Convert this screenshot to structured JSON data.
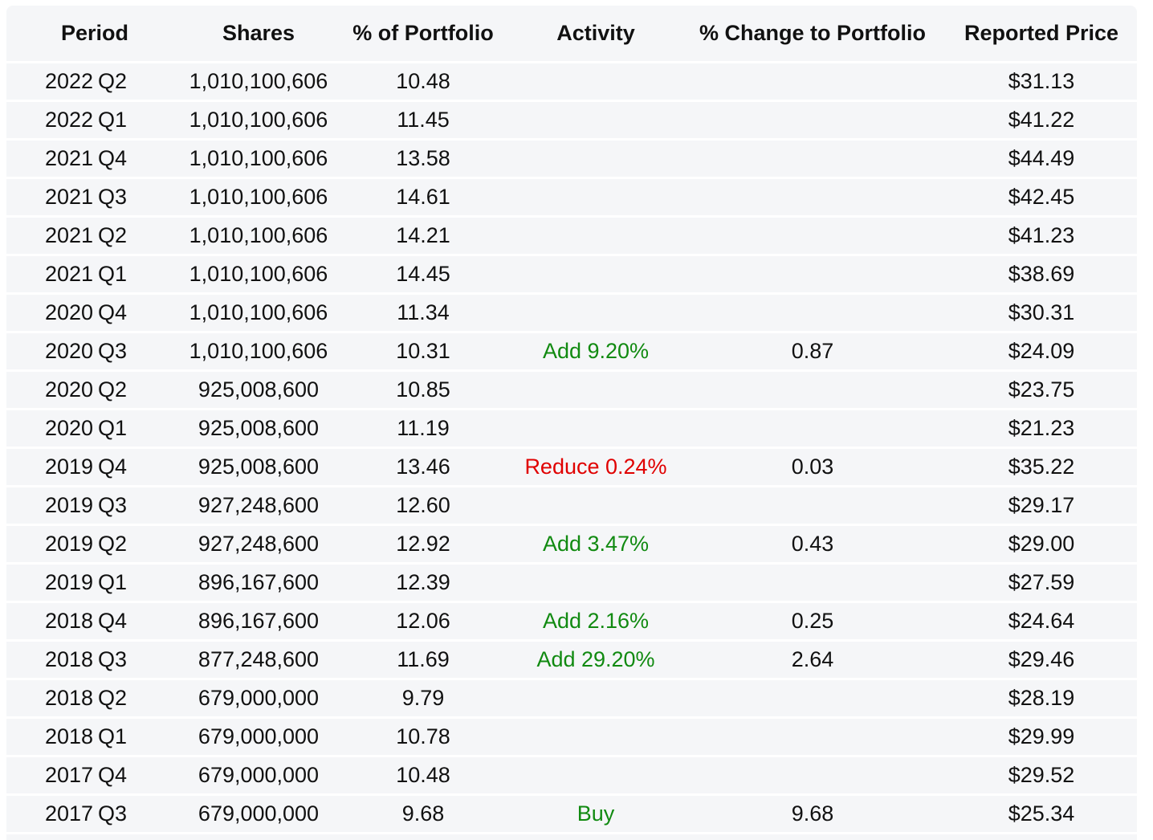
{
  "headers": {
    "period": "Period",
    "shares": "Shares",
    "pct_portfolio": "% of Portfolio",
    "activity": "Activity",
    "pct_change": "% Change to Portfolio",
    "price": "Reported Price"
  },
  "colors": {
    "add": "#118a11",
    "reduce": "#e00000",
    "background": "#f5f6f8"
  },
  "rows": [
    {
      "year": "2022",
      "quarter": "Q2",
      "shares": "1,010,100,606",
      "pct": "10.48",
      "activity": "",
      "activity_type": "",
      "change": "",
      "price": "$31.13"
    },
    {
      "year": "2022",
      "quarter": "Q1",
      "shares": "1,010,100,606",
      "pct": "11.45",
      "activity": "",
      "activity_type": "",
      "change": "",
      "price": "$41.22"
    },
    {
      "year": "2021",
      "quarter": "Q4",
      "shares": "1,010,100,606",
      "pct": "13.58",
      "activity": "",
      "activity_type": "",
      "change": "",
      "price": "$44.49"
    },
    {
      "year": "2021",
      "quarter": "Q3",
      "shares": "1,010,100,606",
      "pct": "14.61",
      "activity": "",
      "activity_type": "",
      "change": "",
      "price": "$42.45"
    },
    {
      "year": "2021",
      "quarter": "Q2",
      "shares": "1,010,100,606",
      "pct": "14.21",
      "activity": "",
      "activity_type": "",
      "change": "",
      "price": "$41.23"
    },
    {
      "year": "2021",
      "quarter": "Q1",
      "shares": "1,010,100,606",
      "pct": "14.45",
      "activity": "",
      "activity_type": "",
      "change": "",
      "price": "$38.69"
    },
    {
      "year": "2020",
      "quarter": "Q4",
      "shares": "1,010,100,606",
      "pct": "11.34",
      "activity": "",
      "activity_type": "",
      "change": "",
      "price": "$30.31"
    },
    {
      "year": "2020",
      "quarter": "Q3",
      "shares": "1,010,100,606",
      "pct": "10.31",
      "activity": "Add 9.20%",
      "activity_type": "add",
      "change": "0.87",
      "price": "$24.09"
    },
    {
      "year": "2020",
      "quarter": "Q2",
      "shares": "925,008,600",
      "pct": "10.85",
      "activity": "",
      "activity_type": "",
      "change": "",
      "price": "$23.75"
    },
    {
      "year": "2020",
      "quarter": "Q1",
      "shares": "925,008,600",
      "pct": "11.19",
      "activity": "",
      "activity_type": "",
      "change": "",
      "price": "$21.23"
    },
    {
      "year": "2019",
      "quarter": "Q4",
      "shares": "925,008,600",
      "pct": "13.46",
      "activity": "Reduce 0.24%",
      "activity_type": "reduce",
      "change": "0.03",
      "price": "$35.22"
    },
    {
      "year": "2019",
      "quarter": "Q3",
      "shares": "927,248,600",
      "pct": "12.60",
      "activity": "",
      "activity_type": "",
      "change": "",
      "price": "$29.17"
    },
    {
      "year": "2019",
      "quarter": "Q2",
      "shares": "927,248,600",
      "pct": "12.92",
      "activity": "Add 3.47%",
      "activity_type": "add",
      "change": "0.43",
      "price": "$29.00"
    },
    {
      "year": "2019",
      "quarter": "Q1",
      "shares": "896,167,600",
      "pct": "12.39",
      "activity": "",
      "activity_type": "",
      "change": "",
      "price": "$27.59"
    },
    {
      "year": "2018",
      "quarter": "Q4",
      "shares": "896,167,600",
      "pct": "12.06",
      "activity": "Add 2.16%",
      "activity_type": "add",
      "change": "0.25",
      "price": "$24.64"
    },
    {
      "year": "2018",
      "quarter": "Q3",
      "shares": "877,248,600",
      "pct": "11.69",
      "activity": "Add 29.20%",
      "activity_type": "add",
      "change": "2.64",
      "price": "$29.46"
    },
    {
      "year": "2018",
      "quarter": "Q2",
      "shares": "679,000,000",
      "pct": "9.79",
      "activity": "",
      "activity_type": "",
      "change": "",
      "price": "$28.19"
    },
    {
      "year": "2018",
      "quarter": "Q1",
      "shares": "679,000,000",
      "pct": "10.78",
      "activity": "",
      "activity_type": "",
      "change": "",
      "price": "$29.99"
    },
    {
      "year": "2017",
      "quarter": "Q4",
      "shares": "679,000,000",
      "pct": "10.48",
      "activity": "",
      "activity_type": "",
      "change": "",
      "price": "$29.52"
    },
    {
      "year": "2017",
      "quarter": "Q3",
      "shares": "679,000,000",
      "pct": "9.68",
      "activity": "Buy",
      "activity_type": "buy",
      "change": "9.68",
      "price": "$25.34"
    }
  ]
}
